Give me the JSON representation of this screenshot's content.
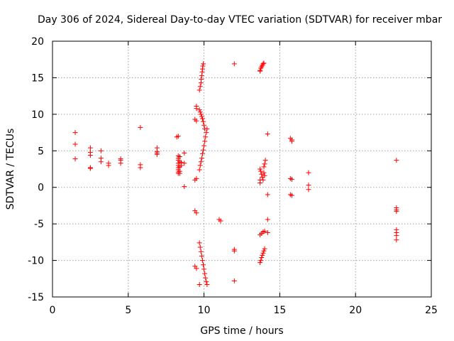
{
  "chart_data": {
    "type": "scatter",
    "title": "Day 306 of 2024, Sidereal Day-to-day VTEC variation (SDTVAR) for receiver mbar",
    "xlabel": "GPS time / hours",
    "ylabel": "SDTVAR / TECUs",
    "xlim": [
      0,
      25
    ],
    "ylim": [
      -15,
      20
    ],
    "xticks": [
      0,
      5,
      10,
      15,
      20,
      25
    ],
    "yticks": [
      -15,
      -10,
      -5,
      0,
      5,
      10,
      15,
      20
    ],
    "grid": true,
    "marker": "+",
    "color": "#ff0000",
    "series": [
      {
        "name": "SDTVAR",
        "points": [
          [
            1.5,
            7.5
          ],
          [
            1.5,
            5.9
          ],
          [
            1.5,
            3.9
          ],
          [
            2.5,
            5.4
          ],
          [
            2.5,
            4.8
          ],
          [
            2.5,
            4.4
          ],
          [
            2.5,
            2.7
          ],
          [
            2.5,
            2.6
          ],
          [
            3.2,
            5.0
          ],
          [
            3.2,
            4.0
          ],
          [
            3.2,
            3.5
          ],
          [
            3.7,
            3.3
          ],
          [
            3.7,
            3.0
          ],
          [
            4.5,
            3.9
          ],
          [
            4.5,
            3.7
          ],
          [
            4.5,
            3.3
          ],
          [
            5.8,
            8.2
          ],
          [
            5.8,
            3.1
          ],
          [
            5.8,
            2.7
          ],
          [
            6.9,
            5.4
          ],
          [
            6.9,
            4.9
          ],
          [
            6.9,
            4.7
          ],
          [
            6.9,
            4.5
          ],
          [
            8.2,
            6.9
          ],
          [
            8.3,
            7.0
          ],
          [
            8.3,
            4.3
          ],
          [
            8.3,
            4.0
          ],
          [
            8.3,
            3.7
          ],
          [
            8.3,
            3.3
          ],
          [
            8.3,
            3.0
          ],
          [
            8.3,
            2.7
          ],
          [
            8.3,
            2.4
          ],
          [
            8.3,
            2.1
          ],
          [
            8.3,
            1.9
          ],
          [
            8.4,
            4.2
          ],
          [
            8.4,
            3.5
          ],
          [
            8.4,
            2.8
          ],
          [
            8.4,
            2.2
          ],
          [
            8.4,
            1.9
          ],
          [
            8.5,
            3.4
          ],
          [
            8.5,
            3.0
          ],
          [
            8.7,
            4.7
          ],
          [
            8.7,
            3.3
          ],
          [
            8.7,
            0.1
          ],
          [
            9.5,
            11.1
          ],
          [
            9.5,
            10.8
          ],
          [
            9.4,
            9.3
          ],
          [
            9.5,
            9.1
          ],
          [
            9.4,
            1.0
          ],
          [
            9.5,
            1.2
          ],
          [
            9.4,
            -3.2
          ],
          [
            9.5,
            -3.5
          ],
          [
            9.4,
            -10.8
          ],
          [
            9.5,
            -11.1
          ],
          [
            9.7,
            13.3
          ],
          [
            9.75,
            13.8
          ],
          [
            9.8,
            14.3
          ],
          [
            9.82,
            14.8
          ],
          [
            9.85,
            15.3
          ],
          [
            9.88,
            15.8
          ],
          [
            9.9,
            16.2
          ],
          [
            9.92,
            16.6
          ],
          [
            9.95,
            16.9
          ],
          [
            9.7,
            10.6
          ],
          [
            9.75,
            10.3
          ],
          [
            9.8,
            10.0
          ],
          [
            9.85,
            9.7
          ],
          [
            9.9,
            9.4
          ],
          [
            9.95,
            9.0
          ],
          [
            10.0,
            8.5
          ],
          [
            10.05,
            8.0
          ],
          [
            9.7,
            2.4
          ],
          [
            9.75,
            3.0
          ],
          [
            9.8,
            3.5
          ],
          [
            9.85,
            4.0
          ],
          [
            9.9,
            4.6
          ],
          [
            9.95,
            5.1
          ],
          [
            10.0,
            5.7
          ],
          [
            10.05,
            6.3
          ],
          [
            10.1,
            6.9
          ],
          [
            10.15,
            7.5
          ],
          [
            10.2,
            8.0
          ],
          [
            9.7,
            -7.6
          ],
          [
            9.75,
            -8.2
          ],
          [
            9.8,
            -8.8
          ],
          [
            9.85,
            -9.4
          ],
          [
            9.9,
            -10.0
          ],
          [
            9.95,
            -10.6
          ],
          [
            10.0,
            -11.2
          ],
          [
            10.05,
            -11.8
          ],
          [
            10.1,
            -12.4
          ],
          [
            10.15,
            -12.9
          ],
          [
            10.2,
            -13.3
          ],
          [
            9.7,
            -13.3
          ],
          [
            11.0,
            -4.4
          ],
          [
            11.1,
            -4.6
          ],
          [
            12.0,
            16.9
          ],
          [
            12.0,
            -8.5
          ],
          [
            12.0,
            -8.7
          ],
          [
            12.0,
            -12.8
          ],
          [
            13.7,
            16.0
          ],
          [
            13.75,
            16.3
          ],
          [
            13.8,
            16.5
          ],
          [
            13.85,
            16.7
          ],
          [
            13.9,
            16.9
          ],
          [
            13.95,
            17.0
          ],
          [
            13.7,
            15.9
          ],
          [
            13.7,
            2.5
          ],
          [
            13.75,
            2.2
          ],
          [
            13.8,
            1.8
          ],
          [
            13.85,
            1.4
          ],
          [
            13.9,
            1.0
          ],
          [
            13.7,
            0.6
          ],
          [
            13.7,
            1.0
          ],
          [
            13.95,
            2.8
          ],
          [
            14.0,
            3.2
          ],
          [
            14.05,
            3.7
          ],
          [
            13.95,
            2.0
          ],
          [
            14.0,
            1.6
          ],
          [
            13.7,
            -6.5
          ],
          [
            13.8,
            -6.3
          ],
          [
            13.9,
            -6.1
          ],
          [
            14.0,
            -6.0
          ],
          [
            14.2,
            -6.2
          ],
          [
            13.7,
            -10.3
          ],
          [
            13.75,
            -10.0
          ],
          [
            13.8,
            -9.6
          ],
          [
            13.85,
            -9.3
          ],
          [
            13.9,
            -9.0
          ],
          [
            13.95,
            -8.7
          ],
          [
            14.0,
            -8.4
          ],
          [
            14.2,
            7.3
          ],
          [
            14.2,
            -1.0
          ],
          [
            14.2,
            -4.4
          ],
          [
            15.7,
            6.7
          ],
          [
            15.8,
            6.5
          ],
          [
            15.8,
            6.3
          ],
          [
            15.7,
            1.2
          ],
          [
            15.8,
            1.1
          ],
          [
            15.7,
            -1.0
          ],
          [
            15.8,
            -1.1
          ],
          [
            16.9,
            2.0
          ],
          [
            16.9,
            0.3
          ],
          [
            16.9,
            -0.3
          ],
          [
            22.7,
            3.7
          ],
          [
            22.7,
            -2.8
          ],
          [
            22.7,
            -3.1
          ],
          [
            22.7,
            -3.3
          ],
          [
            22.7,
            -5.8
          ],
          [
            22.7,
            -6.2
          ],
          [
            22.7,
            -6.6
          ],
          [
            22.7,
            -7.2
          ]
        ]
      }
    ]
  }
}
